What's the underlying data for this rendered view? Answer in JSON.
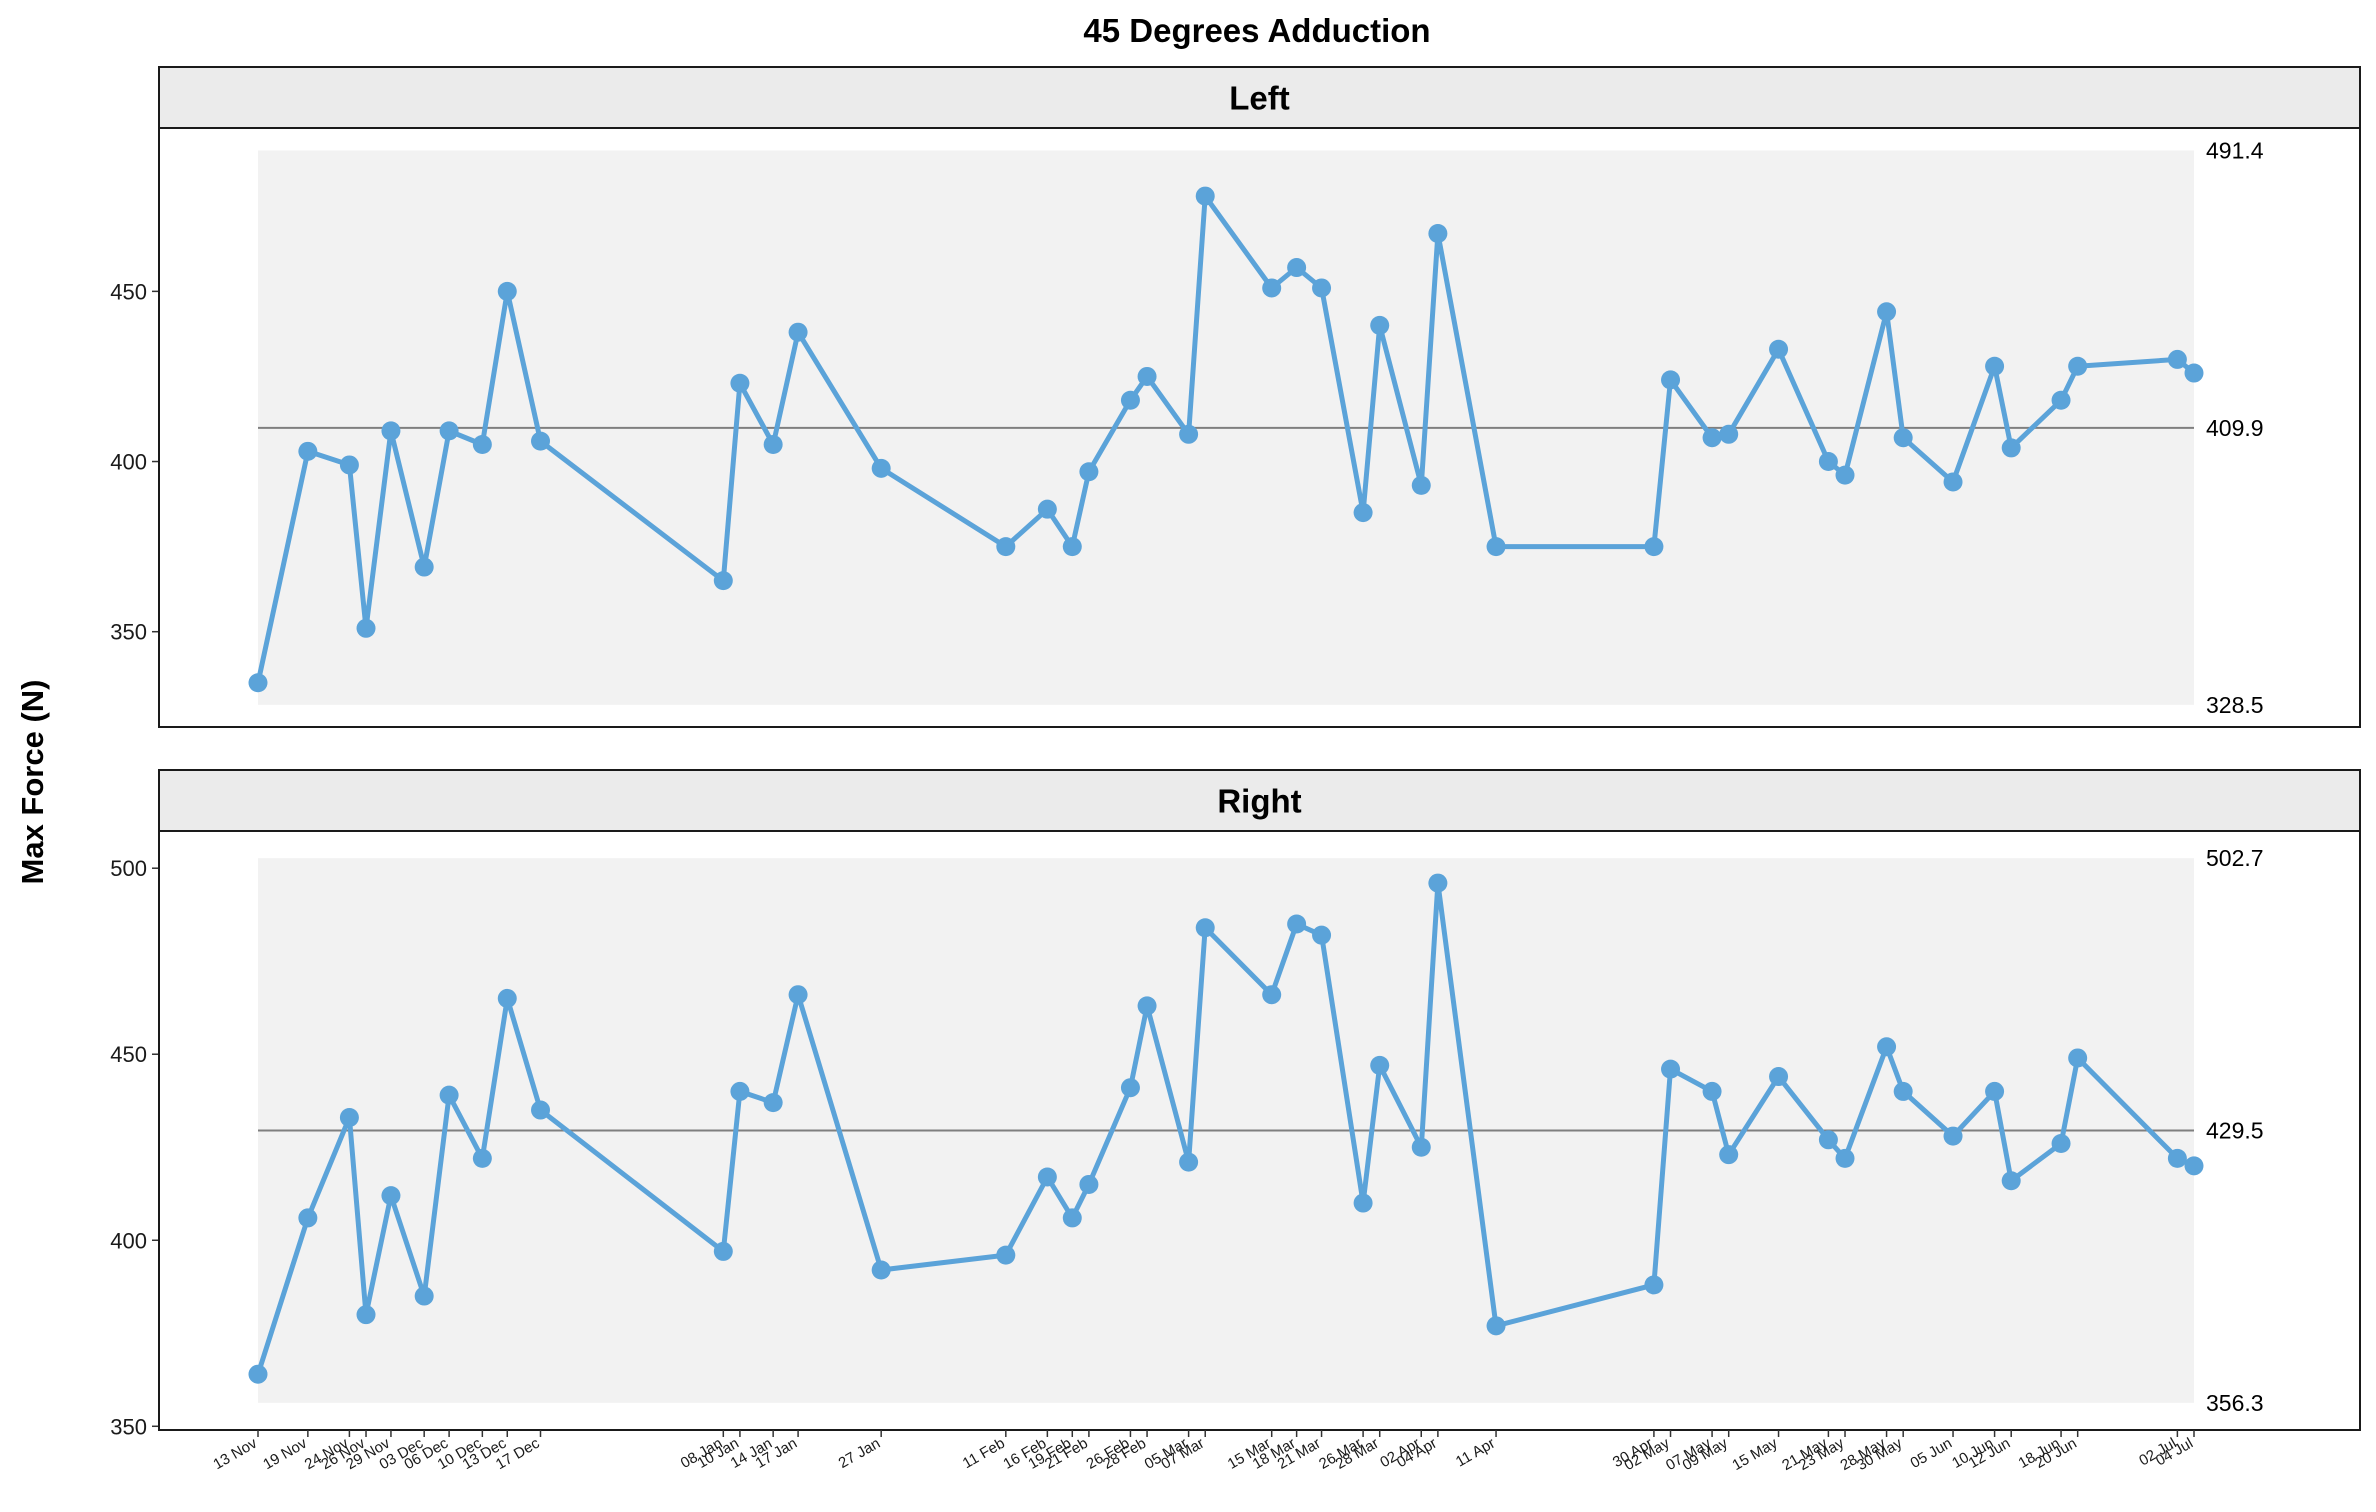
{
  "chart_data": {
    "type": "line",
    "title": "45 Degrees Adduction",
    "ylabel": "Max Force (N)",
    "xlabel": "",
    "colors": {
      "series": "#5ba3d9",
      "band": "#f2f2f2",
      "strip": "#ebebeb",
      "mean_line": "#7f7f7f"
    },
    "x_tick_labels": [
      "13 Nov",
      "19 Nov",
      "24 Nov",
      "26 Nov",
      "29 Nov",
      "03 Dec",
      "06 Dec",
      "10 Dec",
      "13 Dec",
      "17 Dec",
      "08 Jan",
      "10 Jan",
      "14 Jan",
      "17 Jan",
      "27 Jan",
      "11 Feb",
      "16 Feb",
      "19 Feb",
      "21 Feb",
      "26 Feb",
      "28 Feb",
      "05 Mar",
      "07 Mar",
      "15 Mar",
      "18 Mar",
      "21 Mar",
      "26 Mar",
      "28 Mar",
      "02 Apr",
      "04 Apr",
      "11 Apr",
      "30 Apr",
      "02 May",
      "07 May",
      "09 May",
      "15 May",
      "21 May",
      "23 May",
      "28 May",
      "30 May",
      "05 Jun",
      "10 Jun",
      "12 Jun",
      "18 Jun",
      "20 Jun",
      "02 Jul",
      "04 Jul"
    ],
    "x_day_index": [
      0,
      6,
      11,
      13,
      16,
      20,
      23,
      27,
      30,
      34,
      56,
      58,
      62,
      65,
      75,
      90,
      95,
      98,
      100,
      105,
      107,
      112,
      114,
      122,
      125,
      128,
      133,
      135,
      140,
      142,
      149,
      168,
      170,
      175,
      177,
      183,
      189,
      191,
      196,
      198,
      204,
      209,
      211,
      217,
      219,
      231,
      233
    ],
    "panels": [
      {
        "name": "Left",
        "ylim": [
          322,
          498
        ],
        "yticks": [
          350,
          400,
          450
        ],
        "band": [
          328.5,
          491.4
        ],
        "mean": 409.9,
        "ref_labels": {
          "upper": "491.4",
          "mean": "409.9",
          "lower": "328.5"
        },
        "values": [
          335,
          403,
          399,
          351,
          409,
          369,
          409,
          405,
          450,
          406,
          365,
          423,
          405,
          438,
          398,
          375,
          386,
          375,
          397,
          418,
          425,
          408,
          478,
          451,
          457,
          451,
          385,
          440,
          393,
          467,
          375,
          375,
          424,
          407,
          408,
          433,
          400,
          396,
          444,
          407,
          394,
          428,
          404,
          418,
          428,
          430,
          426
        ]
      },
      {
        "name": "Right",
        "ylim": [
          349,
          510
        ],
        "yticks": [
          350,
          400,
          450,
          500
        ],
        "band": [
          356.3,
          502.7
        ],
        "mean": 429.5,
        "ref_labels": {
          "upper": "502.7",
          "mean": "429.5",
          "lower": "356.3"
        },
        "values": [
          364,
          406,
          433,
          380,
          412,
          385,
          439,
          422,
          465,
          435,
          397,
          440,
          437,
          466,
          392,
          396,
          417,
          406,
          415,
          441,
          463,
          421,
          484,
          466,
          485,
          482,
          410,
          447,
          425,
          496,
          377,
          388,
          446,
          440,
          423,
          444,
          427,
          422,
          452,
          440,
          428,
          440,
          416,
          426,
          449,
          422,
          420
        ]
      }
    ]
  }
}
